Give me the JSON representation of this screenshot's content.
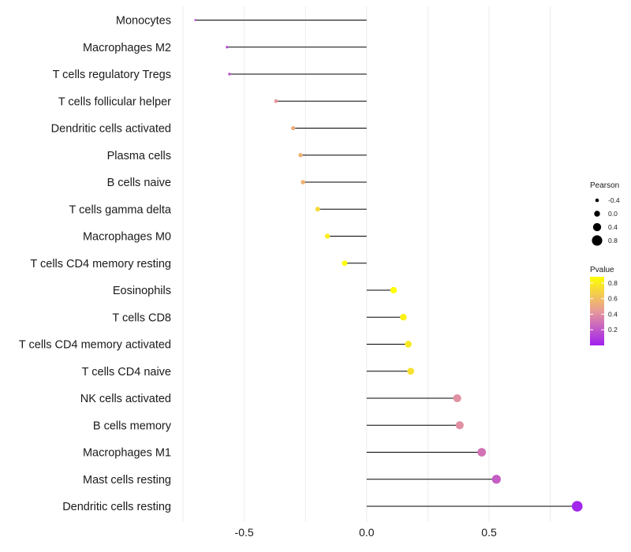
{
  "chart_data": {
    "type": "lollipop",
    "title": "",
    "xlabel": "",
    "ylabel": "",
    "xlim": [
      -0.75,
      0.88
    ],
    "x_ticks": [
      {
        "value": -0.5,
        "label": "-0.5"
      },
      {
        "value": 0.0,
        "label": "0.0"
      },
      {
        "value": 0.5,
        "label": "0.5"
      }
    ],
    "grid": true,
    "categories": [
      "Monocytes",
      "Macrophages M2",
      "T cells regulatory  Tregs",
      "T cells follicular helper",
      "Dendritic cells activated",
      "Plasma cells",
      "B cells naive",
      "T cells gamma delta",
      "Macrophages M0",
      "T cells CD4 memory resting",
      "Eosinophils",
      "T cells CD8",
      "T cells CD4 memory activated",
      "T cells CD4 naive",
      "NK cells activated",
      "B cells memory",
      "Macrophages M1",
      "Mast cells resting",
      "Dendritic cells resting"
    ],
    "series": [
      {
        "name": "Pearson",
        "values": [
          -0.7,
          -0.57,
          -0.56,
          -0.37,
          -0.3,
          -0.27,
          -0.26,
          -0.2,
          -0.16,
          -0.09,
          0.11,
          0.15,
          0.17,
          0.18,
          0.37,
          0.38,
          0.47,
          0.53,
          0.86
        ]
      },
      {
        "name": "Pvalue",
        "values": [
          0.08,
          0.15,
          0.18,
          0.42,
          0.52,
          0.55,
          0.55,
          0.72,
          0.8,
          0.92,
          0.9,
          0.82,
          0.78,
          0.75,
          0.4,
          0.4,
          0.3,
          0.22,
          0.02
        ]
      }
    ],
    "legends": {
      "size": {
        "title": "Pearson",
        "position": "right",
        "entries": [
          {
            "label": "-0.4",
            "value": -0.4
          },
          {
            "label": "0.0",
            "value": 0.0
          },
          {
            "label": "0.4",
            "value": 0.4
          },
          {
            "label": "0.8",
            "value": 0.8
          }
        ]
      },
      "color": {
        "title": "Pvalue",
        "position": "right",
        "range": [
          0.0,
          0.88
        ],
        "ticks": [
          {
            "label": "0.8",
            "value": 0.8
          },
          {
            "label": "0.6",
            "value": 0.6
          },
          {
            "label": "0.4",
            "value": 0.4
          },
          {
            "label": "0.2",
            "value": 0.2
          }
        ],
        "low_color": "#a020f0",
        "mid_color": "#e89a9a",
        "high_color": "#ffff00"
      }
    },
    "colors": {
      "stem": "#000000",
      "grid": "#ececec"
    }
  }
}
